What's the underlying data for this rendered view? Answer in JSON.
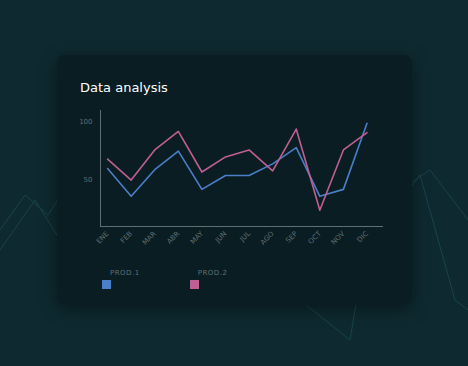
{
  "chart_data": {
    "type": "line",
    "title": "Data analysis",
    "categories": [
      "ENE",
      "FEB",
      "MAR",
      "ABR",
      "MAY",
      "JUN",
      "JUL",
      "AGO",
      "SEP",
      "OCT",
      "NOV",
      "DIC"
    ],
    "series": [
      {
        "name": "PROD.1",
        "color": "#4a7fc9",
        "values": [
          60,
          36,
          59,
          75,
          42,
          54,
          54,
          64,
          78,
          36,
          42,
          99
        ]
      },
      {
        "name": "PROD.2",
        "color": "#c05f93",
        "values": [
          68,
          50,
          76,
          92,
          57,
          70,
          76,
          58,
          94,
          24,
          76,
          91
        ]
      }
    ],
    "ylim": [
      10,
      110
    ],
    "yticks": [
      50,
      100
    ],
    "grid": false,
    "legend": "bottom"
  }
}
